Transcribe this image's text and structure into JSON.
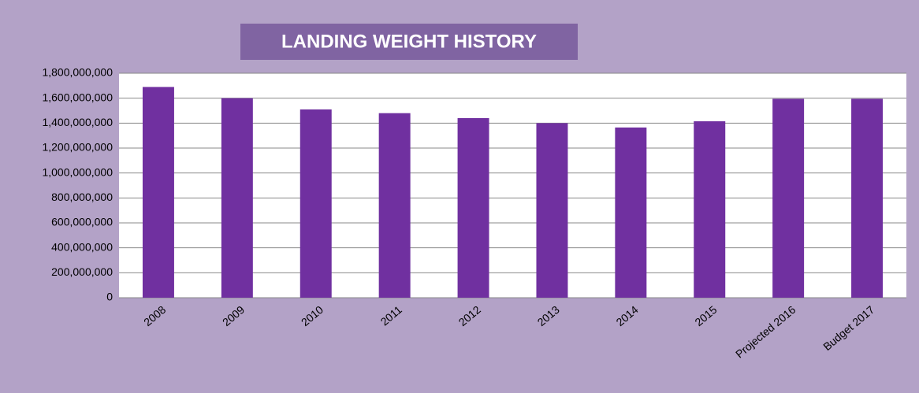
{
  "chart_data": {
    "type": "bar",
    "title": "LANDING WEIGHT HISTORY",
    "categories": [
      "2008",
      "2009",
      "2010",
      "2011",
      "2012",
      "2013",
      "2014",
      "2015",
      "Projected 2016",
      "Budget 2017"
    ],
    "values": [
      1690000000,
      1600000000,
      1510000000,
      1480000000,
      1440000000,
      1400000000,
      1365000000,
      1415000000,
      1595000000,
      1595000000
    ],
    "color": "#7030a0",
    "ylim": [
      0,
      1800000000
    ],
    "yticks": [
      0,
      {
        "value": 200000000,
        "label": "200,000,000"
      },
      {
        "value": 400000000,
        "label": "400,000,000"
      },
      {
        "value": 600000000,
        "label": "600,000,000"
      },
      {
        "value": 800000000,
        "label": "800,000,000"
      },
      {
        "value": 1000000000,
        "label": "1,000,000,000"
      },
      {
        "value": 1200000000,
        "label": "1,200,000,000"
      },
      {
        "value": 1400000000,
        "label": "1,400,000,000"
      },
      {
        "value": 1600000000,
        "label": "1,600,000,000"
      },
      {
        "value": 1800000000,
        "label": "1,800,000,000"
      }
    ],
    "grid": true
  }
}
